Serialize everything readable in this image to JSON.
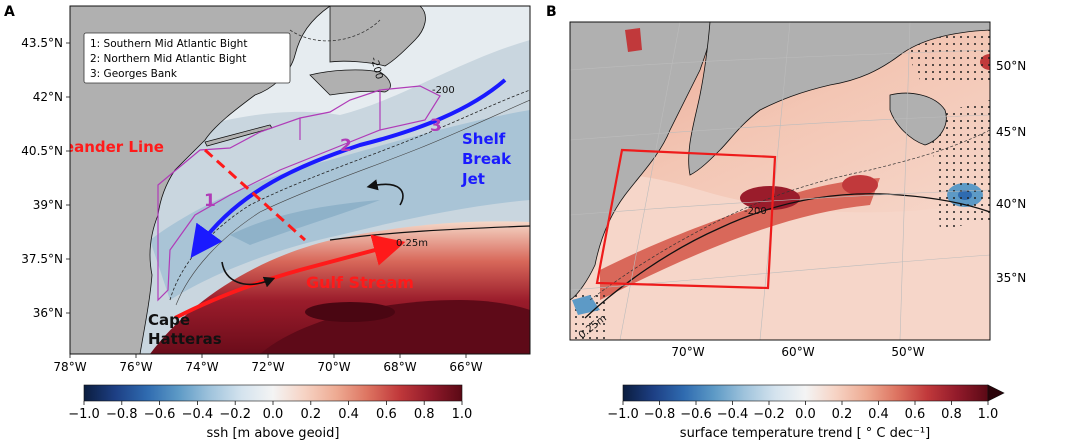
{
  "panels": [
    {
      "letter": "A",
      "x_ticks": [
        "78°W",
        "76°W",
        "74°W",
        "72°W",
        "70°W",
        "68°W",
        "66°W"
      ],
      "y_ticks": [
        "43.5°N",
        "42°N",
        "40.5°N",
        "39°N",
        "37.5°N",
        "36°N"
      ],
      "legend": [
        "1: Southern Mid Atlantic Bight",
        "2: Northern Mid Atlantic Bight",
        "3: Georges Bank"
      ],
      "labels": {
        "oleander": "Oleander Line",
        "region1": "1",
        "region2": "2",
        "region3": "3",
        "shelf1": "Shelf",
        "shelf2": "Break",
        "shelf3": "Jet",
        "gulf": "Gulf Stream",
        "cape1": "Cape",
        "cape2": "Hatteras",
        "c200": "-200",
        "c200b": "-200",
        "c025": "0.25m"
      },
      "colorbar": {
        "ticks": [
          "−1.0",
          "−0.8",
          "−0.6",
          "−0.4",
          "−0.2",
          "0.0",
          "0.2",
          "0.4",
          "0.6",
          "0.8",
          "1.0"
        ],
        "label": "ssh [m above geoid]"
      }
    },
    {
      "letter": "B",
      "x_ticks": [
        "70°W",
        "60°W",
        "50°W"
      ],
      "y_ticks": [
        "50°N",
        "45°N",
        "40°N",
        "35°N"
      ],
      "labels": {
        "c200": "-200",
        "c025": "0.25m"
      },
      "colorbar": {
        "ticks": [
          "−1.0",
          "−0.8",
          "−0.6",
          "−0.4",
          "−0.2",
          "0.0",
          "0.2",
          "0.4",
          "0.6",
          "0.8",
          "1.0"
        ],
        "label": "surface temperature trend [ ° C dec⁻¹]"
      }
    }
  ],
  "colors": {
    "land": "#b0b0b0",
    "gulf_stream_arrow": "#ff1a1a",
    "shelf_jet_arrow": "#1a1aff",
    "region_outline": "#b03cb8",
    "box_outline": "#ee1b1b"
  },
  "cmap": [
    "#0b1d3f",
    "#1d3f84",
    "#2f6bb0",
    "#5d9ac6",
    "#9fc3dc",
    "#d4e3ee",
    "#f4f4f4",
    "#f6d3c4",
    "#eeab93",
    "#dd7461",
    "#c1393b",
    "#911a2a",
    "#5a0915"
  ]
}
